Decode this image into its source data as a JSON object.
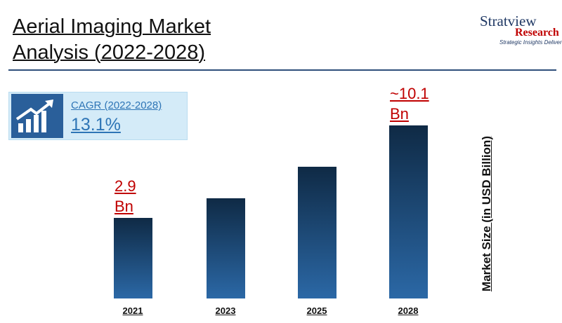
{
  "chart_data": {
    "type": "bar",
    "title": "Aerial Imaging Market Analysis (2022-2028)",
    "cagr_label": "CAGR (2022-2028)",
    "cagr_value": "13.1%",
    "y_label": "Market Size (in  USD Billion)",
    "categories": [
      "2021",
      "2023",
      "2025",
      "2028"
    ],
    "values": [
      2.9,
      4.4,
      6.9,
      10.1
    ],
    "value_labels": [
      "2.9 Bn",
      null,
      null,
      "~10.1 Bn"
    ]
  },
  "logo": {
    "name": "Stratview",
    "subtitle": "Research",
    "tagline": "Strategic Insights Delivered"
  }
}
